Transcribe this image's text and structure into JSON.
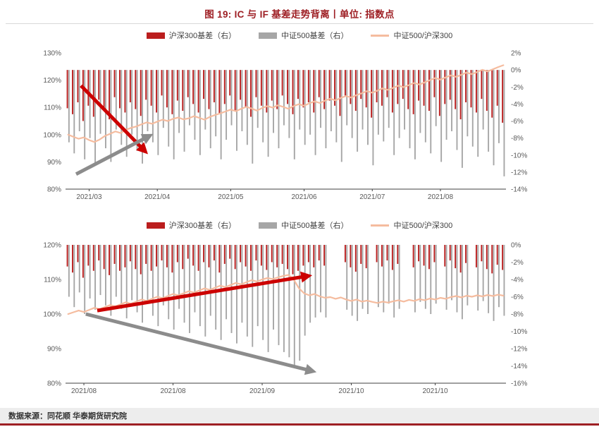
{
  "page": {
    "title": "图 19: IC 与 IF 基差走势背离丨单位: 指数点",
    "source": "数据来源：同花顺  华泰期货研究院"
  },
  "colors": {
    "title_red": "#9e1f24",
    "accent_rule": "#9e1f24",
    "bar_red": "#bb1e1e",
    "bar_gray": "#a6a6a6",
    "line_salmon": "#f5bc9f",
    "arrow_red": "#cc0000",
    "arrow_gray": "#8c8c8c",
    "axis_text": "#595959",
    "axis_line": "#404040",
    "source_bg": "#ededed"
  },
  "chart_data": [
    {
      "type": "bar",
      "legend": [
        "沪深300基差（右）",
        "中证500基差（右）",
        "中证500/沪深300"
      ],
      "left_axis": {
        "unit": "%",
        "min": 80,
        "max": 130,
        "ticks": [
          "130%",
          "120%",
          "110%",
          "100%",
          "90%",
          "80%"
        ]
      },
      "right_axis": {
        "unit": "%",
        "min": -14,
        "max": 2,
        "ticks": [
          "2%",
          "0%",
          "-2%",
          "-4%",
          "-6%",
          "-8%",
          "-10%",
          "-12%",
          "-14%"
        ]
      },
      "x_ticks": {
        "labels": [
          "2021/03",
          "2021/04",
          "2021/05",
          "2021/06",
          "2021/07",
          "2021/08"
        ],
        "indices": [
          4,
          17,
          31,
          45,
          58,
          71
        ]
      },
      "series": [
        {
          "name": "沪深300基差（右）",
          "type": "bar",
          "axis": "right",
          "color_key": "bar_red",
          "values": [
            -4.5,
            -5.2,
            -3.8,
            -6.0,
            -4.2,
            -5.5,
            -3.5,
            -4.8,
            -5.8,
            -3.2,
            -4.5,
            -5.0,
            -3.8,
            -4.6,
            -5.4,
            -3.5,
            -4.2,
            -5.0,
            -3.0,
            -4.4,
            -5.2,
            -3.6,
            -4.8,
            -3.2,
            -4.0,
            -5.0,
            -3.4,
            -4.6,
            -3.8,
            -5.2,
            -4.0,
            -3.0,
            -4.8,
            -3.5,
            -4.4,
            -5.5,
            -3.2,
            -4.2,
            -5.0,
            -3.6,
            -4.6,
            -3.0,
            -4.0,
            -5.2,
            -3.4,
            -4.4,
            -3.8,
            -5.0,
            -3.2,
            -4.6,
            -3.6,
            -4.2,
            -5.4,
            -3.0,
            -4.0,
            -4.8,
            -3.4,
            -4.4,
            -5.6,
            -3.8,
            -4.2,
            -3.2,
            -5.0,
            -4.0,
            -3.4,
            -4.6,
            -5.2,
            -3.6,
            -4.2,
            -4.8,
            -3.2,
            -5.4,
            -4.0,
            -3.5,
            -4.6,
            -5.8,
            -3.8,
            -4.4,
            -5.0,
            -3.4,
            -4.8,
            -5.6,
            -4.2,
            -6.2
          ]
        },
        {
          "name": "中证500基差（右）",
          "type": "bar",
          "axis": "right",
          "color_key": "bar_gray",
          "values": [
            -8.5,
            -9.8,
            -7.2,
            -10.5,
            -8.0,
            -11.2,
            -7.5,
            -9.2,
            -10.8,
            -7.0,
            -8.8,
            -10.2,
            -7.6,
            -9.5,
            -11.0,
            -7.2,
            -8.5,
            -10.0,
            -6.8,
            -9.0,
            -10.5,
            -7.4,
            -9.6,
            -6.5,
            -8.2,
            -10.0,
            -7.0,
            -9.2,
            -7.8,
            -10.5,
            -8.2,
            -6.5,
            -9.5,
            -7.2,
            -8.8,
            -11.0,
            -6.8,
            -8.5,
            -10.2,
            -7.4,
            -9.2,
            -6.5,
            -8.0,
            -10.5,
            -7.0,
            -8.8,
            -7.6,
            -10.0,
            -6.8,
            -9.2,
            -7.2,
            -8.5,
            -10.8,
            -6.5,
            -8.0,
            -9.6,
            -7.0,
            -8.8,
            -11.2,
            -7.6,
            -8.4,
            -6.8,
            -10.0,
            -8.0,
            -7.0,
            -9.2,
            -10.5,
            -7.4,
            -8.5,
            -9.8,
            -6.6,
            -10.8,
            -8.2,
            -7.2,
            -9.4,
            -11.5,
            -7.8,
            -9.0,
            -10.2,
            -7.0,
            -9.6,
            -11.2,
            -8.6,
            -12.5
          ]
        },
        {
          "name": "中证500/沪深300",
          "type": "line",
          "axis": "left",
          "color_key": "line_salmon",
          "values": [
            100.0,
            99.2,
            98.5,
            99.0,
            98.0,
            97.3,
            98.2,
            99.5,
            100.3,
            101.2,
            100.6,
            101.8,
            102.5,
            103.0,
            103.8,
            104.5,
            104.0,
            104.8,
            105.5,
            105.0,
            105.8,
            106.3,
            105.6,
            106.0,
            106.8,
            106.2,
            105.5,
            106.5,
            107.2,
            107.8,
            108.5,
            109.2,
            108.6,
            109.5,
            110.2,
            109.6,
            108.8,
            109.8,
            110.5,
            109.9,
            110.8,
            110.2,
            109.5,
            110.5,
            111.2,
            110.6,
            111.5,
            112.2,
            111.6,
            112.5,
            113.2,
            112.6,
            113.5,
            114.2,
            113.6,
            114.5,
            115.2,
            116.0,
            115.4,
            116.2,
            117.0,
            116.4,
            117.2,
            118.0,
            117.4,
            118.2,
            119.0,
            118.4,
            119.2,
            120.0,
            120.8,
            120.2,
            121.0,
            121.8,
            121.2,
            122.0,
            122.8,
            122.2,
            123.0,
            123.8,
            123.2,
            124.0,
            124.8,
            125.5
          ]
        }
      ],
      "annotations": [
        {
          "type": "arrow",
          "color_key": "arrow_red",
          "from": {
            "xf": 0.035,
            "y": 118
          },
          "to": {
            "xf": 0.18,
            "y": 94
          }
        },
        {
          "type": "arrow",
          "color_key": "arrow_gray",
          "from": {
            "xf": 0.024,
            "y": 85.5
          },
          "to": {
            "xf": 0.19,
            "y": 99.5
          }
        }
      ]
    },
    {
      "type": "bar",
      "legend": [
        "沪深300基差（右）",
        "中证500基差（右）",
        "中证500/沪深300"
      ],
      "left_axis": {
        "unit": "%",
        "min": 80,
        "max": 120,
        "ticks": [
          "120%",
          "110%",
          "100%",
          "90%",
          "80%"
        ]
      },
      "right_axis": {
        "unit": "%",
        "min": -16,
        "max": 0,
        "ticks": [
          "0%",
          "-2%",
          "-4%",
          "-6%",
          "-8%",
          "-10%",
          "-12%",
          "-14%",
          "-16%"
        ]
      },
      "x_ticks": {
        "labels": [
          "2021/08",
          "2021/08",
          "2021/09",
          "2021/10",
          "2021/10"
        ],
        "indices": [
          3,
          20,
          37,
          54,
          70
        ]
      },
      "series": [
        {
          "name": "沪深300基差（右）",
          "type": "bar",
          "axis": "right",
          "color_key": "bar_red",
          "values": [
            -2.5,
            -3.2,
            -2.0,
            -3.8,
            -2.4,
            -3.0,
            -1.8,
            -2.8,
            -3.5,
            -2.2,
            -3.0,
            -2.6,
            -1.9,
            -2.8,
            -3.4,
            -2.2,
            -3.0,
            -2.5,
            -1.8,
            -2.6,
            -3.2,
            -2.0,
            -2.8,
            -1.6,
            -2.4,
            -3.0,
            -2.0,
            -2.6,
            -1.8,
            -3.2,
            -2.2,
            -1.6,
            -2.8,
            -2.0,
            -2.5,
            -3.0,
            -1.8,
            -2.4,
            -2.9,
            -2.0,
            -2.6,
            -2.2,
            -2.8,
            -3.4,
            -3.0,
            -2.4,
            -2.0,
            -2.6,
            -1.8,
            -2.4,
            null,
            null,
            null,
            -2.0,
            -2.6,
            -3.1,
            -2.2,
            -2.7,
            null,
            -2.0,
            -2.5,
            -1.8,
            -2.9,
            -2.2,
            null,
            null,
            -2.6,
            -1.9,
            -2.4,
            -2.8,
            -2.0,
            null,
            -2.5,
            -1.8,
            -2.7,
            -3.2,
            -2.1,
            null,
            -2.6,
            -1.9,
            -2.8,
            -3.3,
            -2.3,
            -2.9
          ]
        },
        {
          "name": "中证500基差（右）",
          "type": "bar",
          "axis": "right",
          "color_key": "bar_gray",
          "values": [
            -6.0,
            -7.2,
            -5.5,
            -8.0,
            -6.2,
            -7.5,
            -5.8,
            -7.0,
            -8.2,
            -6.0,
            -7.4,
            -8.5,
            -6.4,
            -7.8,
            -9.0,
            -6.8,
            -8.2,
            -9.4,
            -7.0,
            -8.6,
            -9.8,
            -7.4,
            -9.0,
            -10.2,
            -7.8,
            -9.4,
            -10.6,
            -8.2,
            -9.8,
            -11.0,
            -8.6,
            -10.2,
            -11.4,
            -9.0,
            -10.6,
            -11.8,
            -9.4,
            -11.0,
            -12.4,
            -9.8,
            -11.6,
            -12.4,
            -13.0,
            -14.2,
            -13.4,
            -10.5,
            -9.0,
            -8.4,
            -7.8,
            -8.4,
            null,
            null,
            null,
            -7.5,
            -8.2,
            -8.8,
            -7.4,
            -8.0,
            null,
            -7.2,
            -7.8,
            -6.8,
            -8.4,
            -7.4,
            null,
            null,
            -7.8,
            -6.6,
            -7.4,
            -8.0,
            -6.8,
            null,
            -7.5,
            -6.4,
            -7.8,
            -8.6,
            -7.0,
            null,
            -7.6,
            -6.5,
            -7.9,
            -8.8,
            -7.2,
            -8.2
          ]
        },
        {
          "name": "中证500/沪深300",
          "type": "line",
          "axis": "left",
          "color_key": "line_salmon",
          "values": [
            100.0,
            100.5,
            101.0,
            100.6,
            101.2,
            101.8,
            101.4,
            102.0,
            102.6,
            102.2,
            102.8,
            103.4,
            103.0,
            103.6,
            104.2,
            103.8,
            104.4,
            105.0,
            104.6,
            105.2,
            105.8,
            105.4,
            106.0,
            106.6,
            106.2,
            106.8,
            107.4,
            107.0,
            107.6,
            108.2,
            107.8,
            108.4,
            109.0,
            108.6,
            109.2,
            109.8,
            109.4,
            110.0,
            110.4,
            110.1,
            110.6,
            111.0,
            111.3,
            110.0,
            107.5,
            106.0,
            105.4,
            105.8,
            105.1,
            104.7,
            104.9,
            104.4,
            104.8,
            104.2,
            103.8,
            104.2,
            103.6,
            103.9,
            103.5,
            103.2,
            103.6,
            103.3,
            103.7,
            104.0,
            103.6,
            104.1,
            103.8,
            104.3,
            104.0,
            104.5,
            104.2,
            104.7,
            104.4,
            104.9,
            105.2,
            104.8,
            105.3,
            105.0,
            105.4,
            105.1,
            105.5,
            105.2,
            105.6,
            105.3
          ]
        }
      ],
      "annotations": [
        {
          "type": "arrow",
          "color_key": "arrow_red",
          "from": {
            "xf": 0.072,
            "y": 101
          },
          "to": {
            "xf": 0.55,
            "y": 111
          }
        },
        {
          "type": "arrow",
          "color_key": "arrow_gray",
          "from": {
            "xf": 0.046,
            "y": 100
          },
          "to": {
            "xf": 0.56,
            "y": 83.5
          }
        }
      ]
    }
  ]
}
